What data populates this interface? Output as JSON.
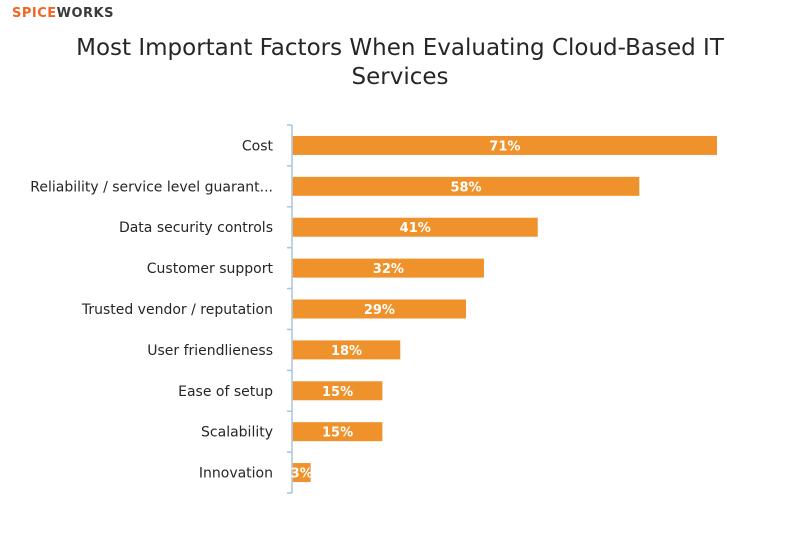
{
  "brand": {
    "part1": "SPICE",
    "part2": "WORKS"
  },
  "chart_data": {
    "type": "bar",
    "orientation": "horizontal",
    "title": "Most Important Factors When Evaluating Cloud-Based IT Services",
    "categories": [
      "Cost",
      "Reliability / service level guarant...",
      "Data security controls",
      "Customer support",
      "Trusted vendor / reputation",
      "User friendlieness",
      "Ease of setup",
      "Scalability",
      "Innovation"
    ],
    "values": [
      71,
      58,
      41,
      32,
      29,
      18,
      15,
      15,
      3
    ],
    "value_labels": [
      "71%",
      "58%",
      "41%",
      "32%",
      "29%",
      "18%",
      "15%",
      "15%",
      "3%"
    ],
    "xlim": [
      0,
      80
    ],
    "grid": false,
    "legend": "none",
    "bar_color": "#f0922b",
    "axis_color": "#a9c4e0"
  }
}
